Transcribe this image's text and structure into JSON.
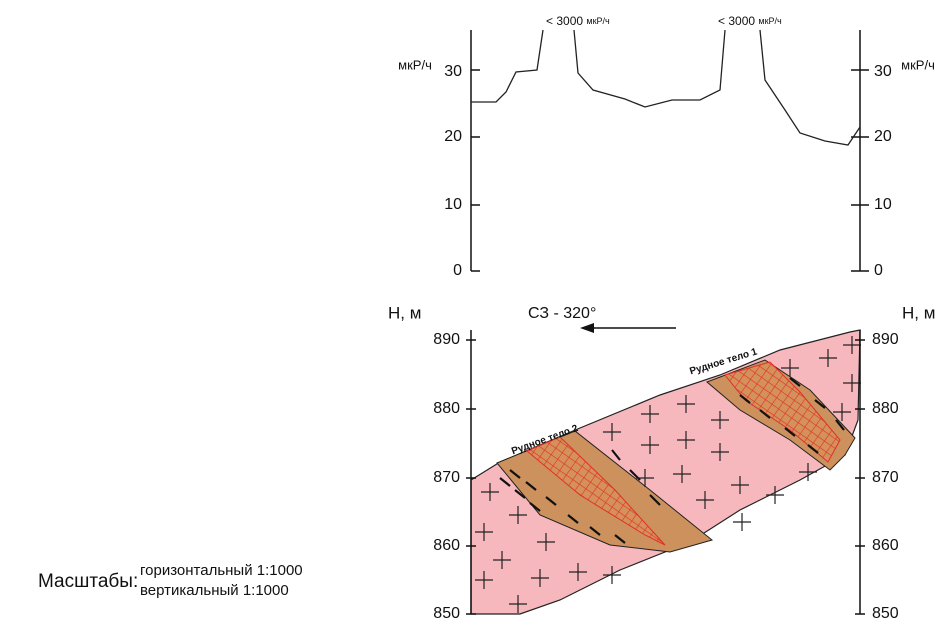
{
  "profile": {
    "unit_left": "мкР/ч",
    "unit_right": "мкР/ч",
    "peak_labels": [
      {
        "value": "< 3000",
        "unit": "мкР/ч"
      },
      {
        "value": "< 3000",
        "unit": "мкР/ч"
      }
    ],
    "ticks": [
      "0",
      "10",
      "20",
      "30"
    ]
  },
  "section": {
    "axis_left": "Н, м",
    "axis_right": "Н, м",
    "direction": "СЗ - 320°",
    "ticks": [
      "850",
      "860",
      "870",
      "880",
      "890"
    ],
    "ore_bodies": [
      "Рудное тело 1",
      "Рудное тело 2"
    ]
  },
  "scales": {
    "label": "Масштабы:",
    "horizontal": "горизонтальный 1:1000",
    "vertical": "вертикальный 1:1000"
  }
}
